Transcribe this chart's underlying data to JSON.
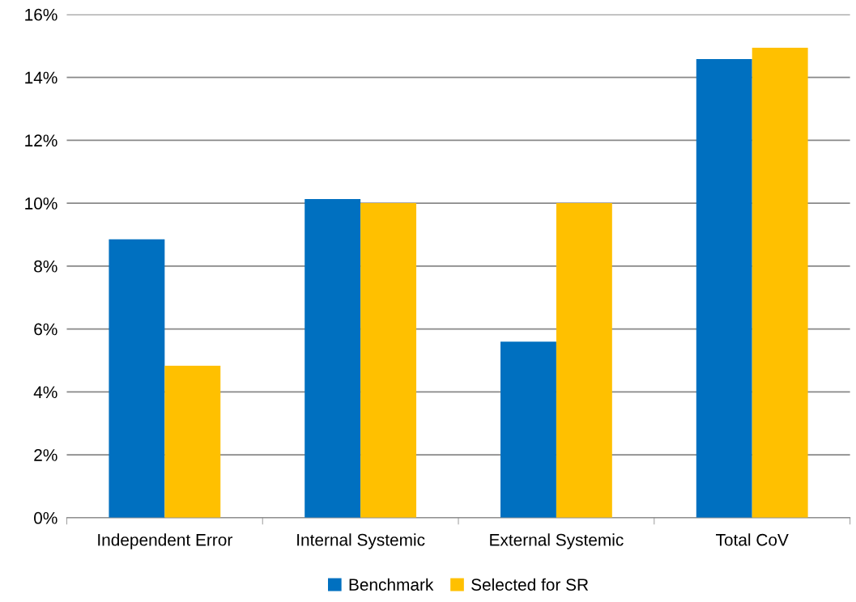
{
  "chart_data": {
    "type": "bar",
    "categories": [
      "Independent Error",
      "Internal Systemic",
      "External Systemic",
      "Total CoV"
    ],
    "series": [
      {
        "name": "Benchmark",
        "color": "#0070c0",
        "values": [
          8.85,
          10.13,
          5.6,
          14.58
        ]
      },
      {
        "name": "Selected for SR",
        "color": "#ffc000",
        "values": [
          4.83,
          10.0,
          10.0,
          14.94
        ]
      }
    ],
    "ylim": [
      0,
      16
    ],
    "yticks": [
      {
        "value": 0,
        "label": "0%"
      },
      {
        "value": 2,
        "label": "2%"
      },
      {
        "value": 4,
        "label": "4%"
      },
      {
        "value": 6,
        "label": "6%"
      },
      {
        "value": 8,
        "label": "8%"
      },
      {
        "value": 10,
        "label": "10%"
      },
      {
        "value": 12,
        "label": "12%"
      },
      {
        "value": 14,
        "label": "14%"
      },
      {
        "value": 16,
        "label": "16%"
      }
    ],
    "grid": "y",
    "legend": "bottom"
  }
}
